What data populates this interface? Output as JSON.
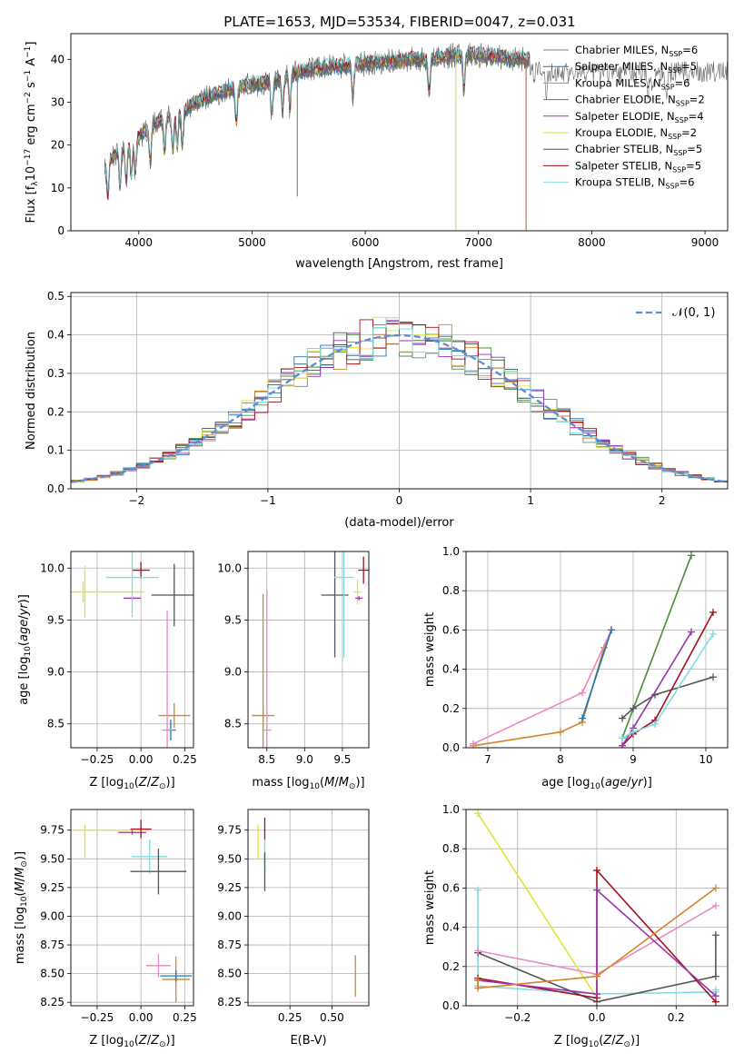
{
  "title": "PLATE=1653, MJD=53534, FIBERID=0047, z=0.031",
  "series_colors": {
    "Chabrier MILES": "#7f7f7f",
    "Salpeter MILES": "#1f77b4",
    "Kroupa MILES": "#d3862b",
    "Chabrier ELODIE": "#4a8f4a",
    "Salpeter ELODIE": "#9b33b0",
    "Kroupa ELODIE": "#e2e23a",
    "Chabrier STELIB": "#555555",
    "Salpeter STELIB": "#a31020",
    "Kroupa STELIB": "#7fdbe0"
  },
  "chart_data": [
    {
      "id": "spectrum",
      "type": "line",
      "xlabel": "wavelength [Angstrom, rest frame]",
      "ylabel": "Flux [f_λ10^-17 erg cm^-2 s^-1 A^-1]",
      "xlim": [
        3400,
        9200
      ],
      "ylim": [
        0,
        46
      ],
      "xticks": [
        4000,
        5000,
        6000,
        7000,
        8000,
        9000
      ],
      "yticks": [
        0,
        10,
        20,
        30,
        40
      ],
      "grid": false,
      "legend_position": "top-right",
      "legend": [
        {
          "base": "Chabrier MILES, N",
          "sub": "SSP",
          "tail": "=6"
        },
        {
          "base": "Salpeter MILES, N",
          "sub": "SSP",
          "tail": "=5"
        },
        {
          "base": "Kroupa MILES, N",
          "sub": "SSP",
          "tail": "=6"
        },
        {
          "base": "Chabrier ELODIE, N",
          "sub": "SSP",
          "tail": "=2"
        },
        {
          "base": "Salpeter ELODIE, N",
          "sub": "SSP",
          "tail": "=4"
        },
        {
          "base": "Kroupa ELODIE, N",
          "sub": "SSP",
          "tail": "=2"
        },
        {
          "base": "Chabrier STELIB, N",
          "sub": "SSP",
          "tail": "=5"
        },
        {
          "base": "Salpeter STELIB, N",
          "sub": "SSP",
          "tail": "=5"
        },
        {
          "base": "Kroupa STELIB, N",
          "sub": "SSP",
          "tail": "=6"
        }
      ],
      "continuum": {
        "x": [
          3700,
          3800,
          3900,
          4000,
          4100,
          4200,
          4300,
          4400,
          4500,
          4600,
          4800,
          5000,
          5200,
          5400,
          5600,
          5800,
          6000,
          6200,
          6400,
          6600,
          6800,
          7000,
          7200,
          7400
        ],
        "y": [
          15,
          18,
          20,
          22,
          24,
          26,
          27,
          28,
          30,
          31,
          33,
          34,
          35,
          37,
          38,
          38.5,
          39,
          39.5,
          40,
          40,
          41,
          41,
          40.5,
          40
        ]
      },
      "data_extent": {
        "data": [
          3700,
          9200
        ],
        "models": [
          3700,
          7450
        ]
      },
      "features": [
        {
          "x": 5400,
          "y": 8
        },
        {
          "x": 6800,
          "y": 0
        },
        {
          "x": 7420,
          "y": 0
        }
      ]
    },
    {
      "id": "residuals",
      "type": "step-histogram",
      "xlabel": "(data-model)/error",
      "ylabel": "Normed distribution",
      "xlim": [
        -2.5,
        2.5
      ],
      "ylim": [
        0,
        0.51
      ],
      "xticks": [
        -2,
        -1,
        0,
        1,
        2
      ],
      "yticks": [
        0.0,
        0.1,
        0.2,
        0.3,
        0.4,
        0.5
      ],
      "grid": true,
      "legend_position": "top-right",
      "legend": [
        {
          "label": "N(0,1)",
          "color": "#5b8ed6",
          "style": "dashed"
        }
      ],
      "bin_width": 0.1,
      "reference": {
        "function": "normal",
        "mean": 0,
        "sigma": 1
      }
    },
    {
      "id": "age-vs-Z",
      "type": "errorbar",
      "xlabel": "Z [log10(Z/Z⊙)]",
      "ylabel": "age [log10(age/yr)]",
      "xlim": [
        -0.4,
        0.3
      ],
      "ylim": [
        8.27,
        10.16
      ],
      "xticks": [
        -0.25,
        0.0,
        0.25
      ],
      "yticks": [
        8.5,
        9.0,
        9.5,
        10.0
      ],
      "grid": true,
      "points": [
        {
          "series": "Kroupa ELODIE",
          "x": -0.33,
          "y": 9.77,
          "xerr": 0.35,
          "yerr": 0.1
        },
        {
          "series": "Kroupa ELODIE",
          "x": -0.32,
          "y": 9.77,
          "xerr": 0.0,
          "yerr": 0.25
        },
        {
          "series": "Salpeter ELODIE",
          "x": -0.05,
          "y": 9.71,
          "xerr": 0.05,
          "yerr": 0.02
        },
        {
          "series": "Salpeter STELIB",
          "x": 0.0,
          "y": 9.98,
          "xerr": 0.05,
          "yerr": 0.08
        },
        {
          "series": "Kroupa STELIB",
          "x": -0.05,
          "y": 9.91,
          "xerr": 0.15,
          "yerr": 0.38
        },
        {
          "series": "Chabrier STELIB",
          "x": 0.19,
          "y": 9.74,
          "xerr": 0.13,
          "yerr": 0.3
        },
        {
          "series": "Kroupa MILES",
          "x": 0.19,
          "y": 8.58,
          "xerr": 0.09,
          "yerr": 0.12
        },
        {
          "series": "Salpeter MILES",
          "x": 0.17,
          "y": 8.44,
          "xerr": 0.03,
          "yerr": 0.1
        },
        {
          "series": "Pink",
          "x": 0.15,
          "y": 8.44,
          "xerr": 0.03,
          "yerr": 1.15
        }
      ]
    },
    {
      "id": "age-vs-mass",
      "type": "errorbar",
      "xlabel": "mass [log10(M/M⊙)]",
      "ylabel": "",
      "xlim": [
        8.25,
        9.85
      ],
      "ylim": [
        8.27,
        10.16
      ],
      "xticks": [
        8.5,
        9.0,
        9.5
      ],
      "yticks": [
        8.5,
        9.0,
        9.5,
        10.0
      ],
      "grid": true,
      "points": [
        {
          "series": "Kroupa MILES",
          "x": 8.45,
          "y": 8.58,
          "xerr": 0.15,
          "yerr": 0.1
        },
        {
          "series": "Kroupa MILES",
          "x": 8.45,
          "y": 8.58,
          "xerr": 0.0,
          "yerr": 1.17
        },
        {
          "series": "Pink",
          "x": 8.5,
          "y": 8.44,
          "xerr": 0.06,
          "yerr": 1.35
        },
        {
          "series": "Chabrier STELIB",
          "x": 9.4,
          "y": 9.74,
          "xerr": 0.18,
          "yerr": 0.6
        },
        {
          "series": "Kroupa STELIB",
          "x": 9.52,
          "y": 9.91,
          "xerr": 0.13,
          "yerr": 0.77
        },
        {
          "series": "Kroupa ELODIE",
          "x": 9.7,
          "y": 9.77,
          "xerr": 0.05,
          "yerr": 0.12
        },
        {
          "series": "Salpeter ELODIE",
          "x": 9.72,
          "y": 9.71,
          "xerr": 0.05,
          "yerr": 0.02
        },
        {
          "series": "Salpeter STELIB",
          "x": 9.78,
          "y": 9.98,
          "xerr": 0.07,
          "yerr": 0.13
        }
      ]
    },
    {
      "id": "weight-vs-age",
      "type": "line",
      "xlabel": "age [log10(age/yr)]",
      "ylabel": "mass weight",
      "xlim": [
        6.7,
        10.3
      ],
      "ylim": [
        0,
        1
      ],
      "xticks": [
        7,
        8,
        9,
        10
      ],
      "yticks": [
        0.0,
        0.2,
        0.4,
        0.6,
        0.8,
        1.0
      ],
      "grid": true,
      "series": [
        {
          "name": "Kroupa MILES",
          "x": [
            6.8,
            8.0,
            8.3,
            8.6,
            8.7
          ],
          "y": [
            0.01,
            0.08,
            0.13,
            0.51,
            0.6
          ]
        },
        {
          "name": "Pink",
          "x": [
            6.8,
            8.3,
            8.7
          ],
          "y": [
            0.02,
            0.28,
            0.6
          ]
        },
        {
          "name": "Salpeter MILES",
          "x": [
            8.3,
            8.7
          ],
          "y": [
            0.15,
            0.6
          ]
        },
        {
          "name": "Kroupa ELODIE",
          "x": [
            8.85,
            9.8
          ],
          "y": [
            0.05,
            0.98
          ]
        },
        {
          "name": "Chabrier ELODIE",
          "x": [
            8.85,
            9.8
          ],
          "y": [
            0.05,
            0.98
          ]
        },
        {
          "name": "Chabrier STELIB",
          "x": [
            8.85,
            9.0,
            9.3,
            10.1
          ],
          "y": [
            0.15,
            0.2,
            0.27,
            0.36
          ]
        },
        {
          "name": "Salpeter STELIB",
          "x": [
            8.85,
            9.0,
            9.3,
            10.1
          ],
          "y": [
            0.01,
            0.07,
            0.14,
            0.69
          ]
        },
        {
          "name": "Salpeter ELODIE",
          "x": [
            8.85,
            9.0,
            9.8
          ],
          "y": [
            0.01,
            0.1,
            0.59
          ]
        },
        {
          "name": "Kroupa STELIB",
          "x": [
            8.85,
            9.0,
            9.3,
            10.1
          ],
          "y": [
            0.05,
            0.08,
            0.12,
            0.58
          ]
        }
      ]
    },
    {
      "id": "mass-vs-Z",
      "type": "errorbar",
      "xlabel": "Z [log10(Z/Z⊙)]",
      "ylabel": "mass [log10(M/M⊙)]",
      "xlim": [
        -0.4,
        0.3
      ],
      "ylim": [
        8.22,
        9.93
      ],
      "xticks": [
        -0.25,
        0.0,
        0.25
      ],
      "yticks": [
        8.25,
        8.5,
        8.75,
        9.0,
        9.25,
        9.5,
        9.75
      ],
      "grid": true,
      "points": [
        {
          "series": "Kroupa ELODIE",
          "x": -0.32,
          "y": 9.75,
          "xerr": 0.35,
          "yerr": 0.05
        },
        {
          "series": "Kroupa ELODIE",
          "x": -0.32,
          "y": 9.65,
          "xerr": 0.0,
          "yerr": 0.15
        },
        {
          "series": "Salpeter ELODIE",
          "x": -0.05,
          "y": 9.73,
          "xerr": 0.08,
          "yerr": 0.02
        },
        {
          "series": "Salpeter STELIB",
          "x": 0.0,
          "y": 9.76,
          "xerr": 0.06,
          "yerr": 0.08
        },
        {
          "series": "Kroupa STELIB",
          "x": 0.05,
          "y": 9.52,
          "xerr": 0.1,
          "yerr": 0.15
        },
        {
          "series": "Chabrier STELIB",
          "x": 0.1,
          "y": 9.39,
          "xerr": 0.16,
          "yerr": 0.2
        },
        {
          "series": "Pink",
          "x": 0.1,
          "y": 8.57,
          "xerr": 0.07,
          "yerr": 0.1
        },
        {
          "series": "Kroupa MILES",
          "x": 0.2,
          "y": 8.45,
          "xerr": 0.08,
          "yerr": 0.2
        },
        {
          "series": "Salpeter MILES",
          "x": 0.2,
          "y": 8.48,
          "xerr": 0.09,
          "yerr": 0.05
        }
      ]
    },
    {
      "id": "mass-vs-EBV",
      "type": "errorbar",
      "xlabel": "E(B-V)",
      "ylabel": "",
      "xlim": [
        0.0,
        0.72
      ],
      "ylim": [
        8.22,
        9.93
      ],
      "xticks": [
        0.25,
        0.5
      ],
      "yticks": [
        8.25,
        8.5,
        8.75,
        9.0,
        9.25,
        9.5,
        9.75
      ],
      "grid": true,
      "points": [
        {
          "series": "Kroupa ELODIE",
          "x": 0.06,
          "y": 9.65,
          "xerr": 0.0,
          "yerr": 0.15
        },
        {
          "series": "Salpeter STELIB",
          "x": 0.1,
          "y": 9.76,
          "xerr": 0.0,
          "yerr": 0.1
        },
        {
          "series": "Kroupa STELIB",
          "x": 0.1,
          "y": 9.52,
          "xerr": 0.0,
          "yerr": 0.15
        },
        {
          "series": "Chabrier STELIB",
          "x": 0.1,
          "y": 9.39,
          "xerr": 0.0,
          "yerr": 0.17
        },
        {
          "series": "Kroupa MILES",
          "x": 0.64,
          "y": 8.48,
          "xerr": 0.0,
          "yerr": 0.18
        }
      ]
    },
    {
      "id": "weight-vs-Z",
      "type": "line",
      "xlabel": "Z [log10(Z/Z⊙)]",
      "ylabel": "mass weight",
      "xlim": [
        -0.33,
        0.33
      ],
      "ylim": [
        0,
        1
      ],
      "xticks": [
        -0.2,
        0.0,
        0.2
      ],
      "yticks": [
        0.0,
        0.2,
        0.4,
        0.6,
        0.8,
        1.0
      ],
      "grid": true,
      "series": [
        {
          "name": "Kroupa ELODIE",
          "x": [
            -0.3,
            0.0
          ],
          "y": [
            0.98,
            0.04
          ]
        },
        {
          "name": "Kroupa STELIB",
          "x": [
            -0.3,
            -0.3,
            0.0,
            0.3,
            0.3
          ],
          "y": [
            0.59,
            0.1,
            0.06,
            0.07,
            0.08
          ]
        },
        {
          "name": "Chabrier STELIB",
          "x": [
            -0.3,
            0.0,
            0.3,
            0.3
          ],
          "y": [
            0.27,
            0.02,
            0.15,
            0.36
          ]
        },
        {
          "name": "Pink",
          "x": [
            -0.3,
            0.0,
            0.3
          ],
          "y": [
            0.28,
            0.16,
            0.51
          ]
        },
        {
          "name": "Salpeter STELIB",
          "x": [
            -0.3,
            0.0,
            0.0,
            0.3
          ],
          "y": [
            0.14,
            0.04,
            0.69,
            0.02
          ]
        },
        {
          "name": "Salpeter ELODIE",
          "x": [
            -0.3,
            0.0,
            0.0,
            0.3
          ],
          "y": [
            0.13,
            0.06,
            0.59,
            0.05
          ]
        },
        {
          "name": "Kroupa MILES",
          "x": [
            -0.3,
            -0.3,
            0.0,
            0.3
          ],
          "y": [
            0.13,
            0.09,
            0.15,
            0.6
          ]
        }
      ]
    }
  ]
}
